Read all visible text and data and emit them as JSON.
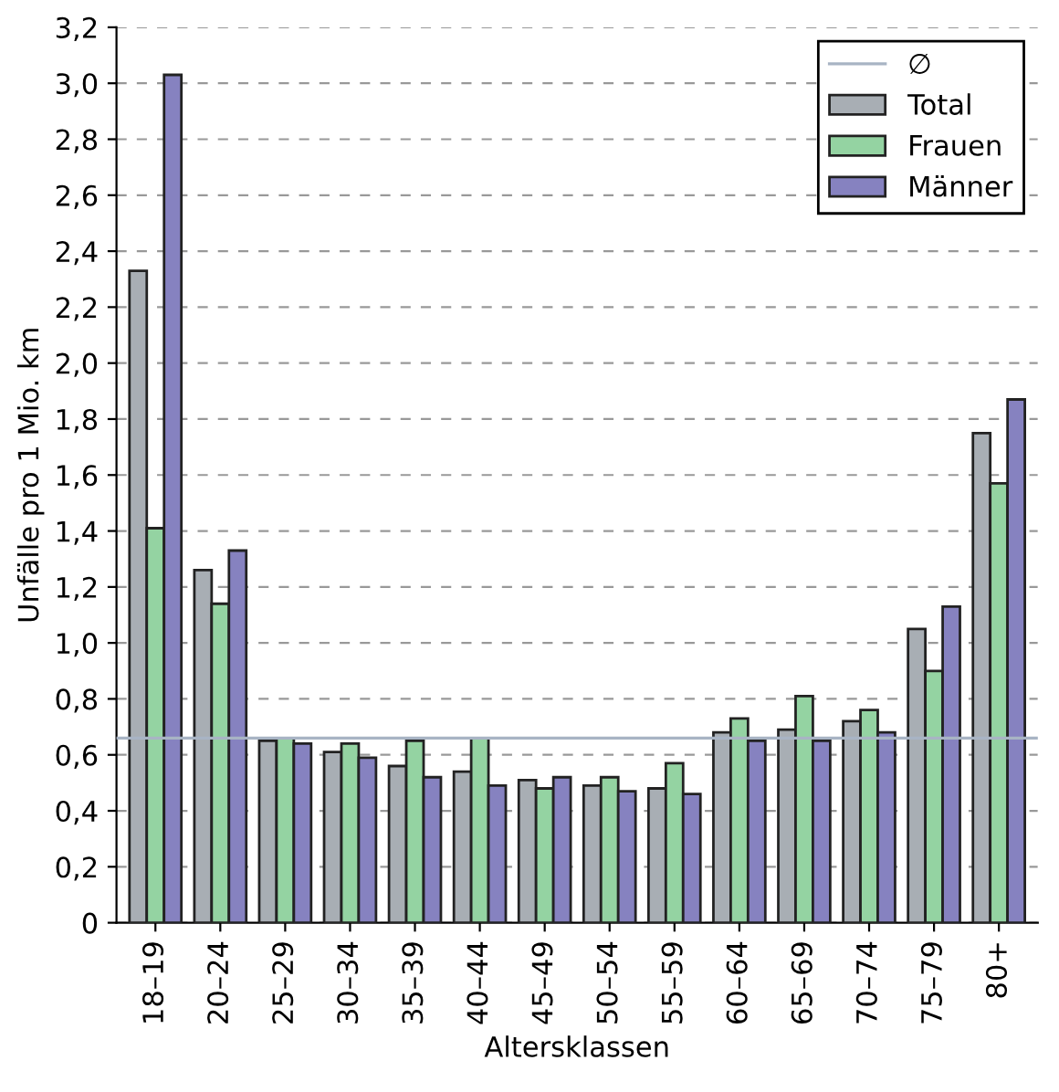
{
  "chart_data": {
    "type": "bar",
    "xlabel": "Altersklassen",
    "ylabel": "Unfälle pro 1 Mio. km",
    "categories": [
      "18–19",
      "20–24",
      "25–29",
      "30–34",
      "35–39",
      "40–44",
      "45–49",
      "50–54",
      "55–59",
      "60–64",
      "65–69",
      "70–74",
      "75–79",
      "80+"
    ],
    "series": [
      {
        "name": "Total",
        "color": "#a8aeb4",
        "values": [
          2.33,
          1.26,
          0.65,
          0.61,
          0.56,
          0.54,
          0.51,
          0.49,
          0.48,
          0.68,
          0.69,
          0.72,
          1.05,
          1.75
        ]
      },
      {
        "name": "Frauen",
        "color": "#94d3a2",
        "values": [
          1.41,
          1.14,
          0.66,
          0.64,
          0.65,
          0.66,
          0.48,
          0.52,
          0.57,
          0.73,
          0.81,
          0.76,
          0.9,
          1.57
        ]
      },
      {
        "name": "Männer",
        "color": "#8682c0",
        "values": [
          3.03,
          1.33,
          0.64,
          0.59,
          0.52,
          0.49,
          0.52,
          0.47,
          0.46,
          0.65,
          0.65,
          0.68,
          1.13,
          1.87
        ]
      }
    ],
    "ylim": [
      0,
      3.2
    ],
    "yticks": [
      0,
      {
        "value": 0.2,
        "label": "0,2"
      },
      {
        "value": 0.4,
        "label": "0,4"
      },
      {
        "value": 0.6,
        "label": "0,6"
      },
      {
        "value": 0.8,
        "label": "0,8"
      },
      {
        "value": 1.0,
        "label": "1,0"
      },
      {
        "value": 1.2,
        "label": "1,2"
      },
      {
        "value": 1.4,
        "label": "1,4"
      },
      {
        "value": 1.6,
        "label": "1,6"
      },
      {
        "value": 1.8,
        "label": "1,8"
      },
      {
        "value": 2.0,
        "label": "2,0"
      },
      {
        "value": 2.2,
        "label": "2,2"
      },
      {
        "value": 2.4,
        "label": "2,4"
      },
      {
        "value": 2.6,
        "label": "2,6"
      },
      {
        "value": 2.8,
        "label": "2,8"
      },
      {
        "value": 3.0,
        "label": "3,0"
      },
      {
        "value": 3.2,
        "label": "3,2"
      }
    ],
    "ref_lines": [
      {
        "axis": "y",
        "value": 0.66,
        "label": "∅",
        "color": "#a8b4c4"
      }
    ],
    "grid": "y",
    "legend": "top right"
  }
}
